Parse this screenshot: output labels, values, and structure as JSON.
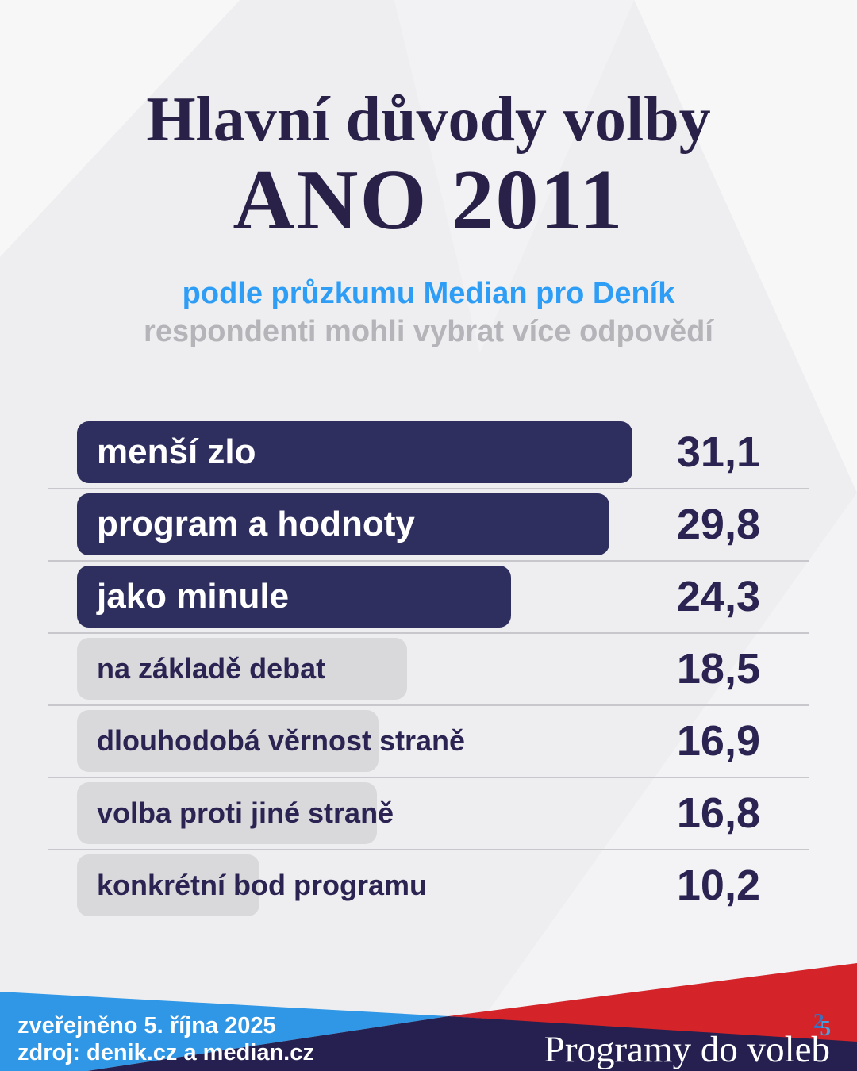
{
  "title": {
    "line1": "Hlavní důvody volby",
    "line2": "ANO 2011"
  },
  "subtitle": {
    "line1": "podle průzkumu Median pro Deník",
    "line2": "respondenti mohli vybrat více odpovědí"
  },
  "chart_data": {
    "type": "bar",
    "orientation": "horizontal",
    "title": "Hlavní důvody volby ANO 2011",
    "categories": [
      "menší zlo",
      "program a hodnoty",
      "jako minule",
      "na základě debat",
      "dlouhodobá věrnost straně",
      "volba proti jiné straně",
      "konkrétní bod programu"
    ],
    "values": [
      31.1,
      29.8,
      24.3,
      18.5,
      16.9,
      16.8,
      10.2
    ],
    "value_labels": [
      "31,1",
      "29,8",
      "24,3",
      "18,5",
      "16,9",
      "16,8",
      "10,2"
    ],
    "highlight_count": 3,
    "xlim": [
      0,
      31.1
    ],
    "grid": "row-dividers-only",
    "legend": "none",
    "bar_colors": {
      "highlight": "#2e2f5e",
      "muted": "#d9d9dc"
    }
  },
  "footer": {
    "published": "zveřejněno 5. října 2025",
    "source": "zdroj: denik.cz a median.cz",
    "brand": "Programy do voleb",
    "brand_sup_digit_1": "2",
    "brand_sup_digit_2": "5"
  },
  "colors": {
    "background": "#eeeef0",
    "title": "#2a2148",
    "subtitle_blue": "#2e9df5",
    "subtitle_gray": "#b5b5b9",
    "bar_highlight": "#2e2f5e",
    "bar_muted": "#d9d9dc",
    "bar_label_light": "#ffffff",
    "text_dark": "#2b2351",
    "divider": "#c7c7cc",
    "footer_blue": "#3097e6",
    "footer_red": "#d42329",
    "footer_navy": "#25204f",
    "sup2": "#3a72c0",
    "sup5": "#46a1e0"
  }
}
